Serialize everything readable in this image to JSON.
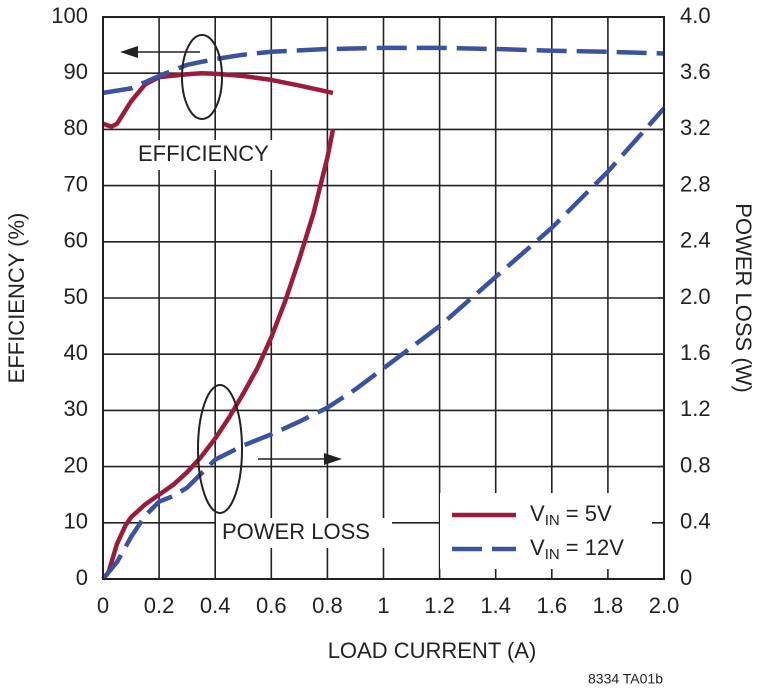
{
  "chart_data": {
    "type": "line",
    "xlabel": "LOAD CURRENT (A)",
    "ylabel": "EFFICIENCY (%)",
    "y2label": "POWER LOSS (W)",
    "xlim": [
      0,
      2
    ],
    "xticks": [
      0,
      0.2,
      0.4,
      0.6,
      0.8,
      1,
      1.2,
      1.4,
      1.6,
      1.8,
      {
        "value": 2,
        "label": "2.0"
      }
    ],
    "ylim": [
      0,
      100
    ],
    "yticks": [
      0,
      10,
      20,
      30,
      40,
      50,
      60,
      70,
      80,
      90,
      100
    ],
    "y2lim": [
      0,
      4
    ],
    "y2ticks": [
      0,
      0.4,
      0.8,
      1.2,
      1.6,
      {
        "value": 2,
        "label": "2.0"
      },
      2.4,
      2.8,
      3.2,
      3.6,
      {
        "value": 4,
        "label": "4.0"
      }
    ],
    "grid": true,
    "legend": "lower right",
    "annotations": [
      "EFFICIENCY",
      "POWER LOSS",
      "8334 TA01b"
    ],
    "series": [
      {
        "name": "VIN = 5V",
        "color": "#9b1b3a",
        "dashed": false,
        "x": [
          0,
          0.03,
          0.05,
          0.1,
          0.15,
          0.2,
          0.3,
          0.35,
          0.4,
          0.5,
          0.6,
          0.7,
          0.82
        ],
        "values": [
          81,
          80.5,
          81,
          85,
          88,
          89.3,
          89.8,
          90,
          89.9,
          89.5,
          88.8,
          87.8,
          86.5
        ]
      },
      {
        "name": "VIN = 12V",
        "color": "#3a52a0",
        "dashed": true,
        "x": [
          0,
          0.1,
          0.2,
          0.3,
          0.4,
          0.5,
          0.6,
          0.8,
          1,
          1.2,
          1.4,
          1.6,
          1.8,
          2
        ],
        "values": [
          86.5,
          87.3,
          89.5,
          91.5,
          92.5,
          93.3,
          93.8,
          94.3,
          94.5,
          94.5,
          94.3,
          94,
          93.8,
          93.5
        ]
      },
      {
        "color": "#9b1b3a",
        "dashed": false,
        "axis": "y2",
        "x": [
          0,
          0.02,
          0.05,
          0.08,
          0.1,
          0.15,
          0.2,
          0.25,
          0.3,
          0.35,
          0.4,
          0.45,
          0.5,
          0.55,
          0.6,
          0.65,
          0.7,
          0.75,
          0.8,
          0.82
        ],
        "values": [
          0,
          0.05,
          0.25,
          0.38,
          0.44,
          0.53,
          0.6,
          0.67,
          0.76,
          0.87,
          1,
          1.15,
          1.32,
          1.5,
          1.72,
          1.98,
          2.28,
          2.6,
          3,
          3.2
        ]
      },
      {
        "color": "#3a52a0",
        "dashed": true,
        "axis": "y2",
        "x": [
          0,
          0.05,
          0.1,
          0.15,
          0.2,
          0.25,
          0.3,
          0.4,
          0.5,
          0.6,
          0.7,
          0.8,
          0.9,
          1,
          1.2,
          1.4,
          1.6,
          1.8,
          2
        ],
        "values": [
          0,
          0.12,
          0.3,
          0.45,
          0.55,
          0.59,
          0.65,
          0.85,
          0.95,
          1.03,
          1.12,
          1.22,
          1.35,
          1.5,
          1.8,
          2.15,
          2.5,
          2.9,
          3.35
        ]
      }
    ]
  }
}
